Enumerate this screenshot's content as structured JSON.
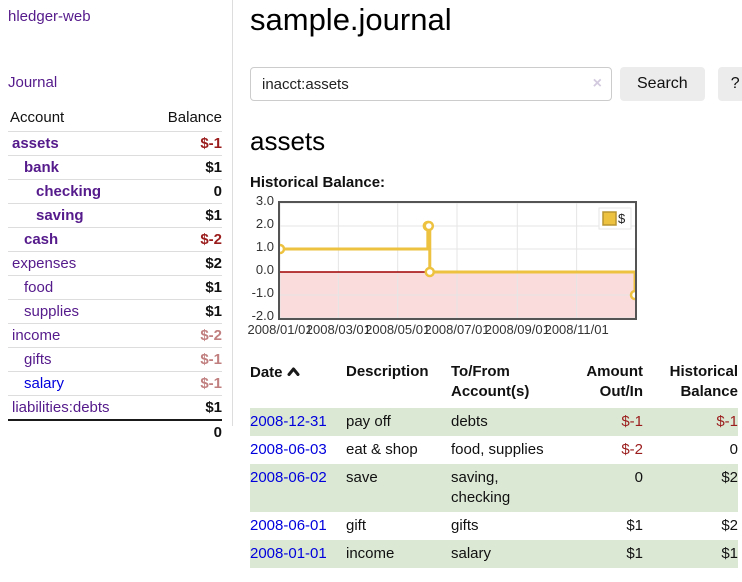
{
  "app": {
    "title": "hledger-web"
  },
  "sidebar": {
    "journal_link": "Journal",
    "table": {
      "account_header": "Account",
      "balance_header": "Balance",
      "accounts": [
        {
          "name": "assets",
          "balance": "$-1",
          "indent": 1,
          "bold": true,
          "balance_style": "neg-strong",
          "link": "visited"
        },
        {
          "name": "bank",
          "balance": "$1",
          "indent": 2,
          "bold": true,
          "balance_style": "pos",
          "link": "visited"
        },
        {
          "name": "checking",
          "balance": "0",
          "indent": 3,
          "bold": true,
          "balance_style": "pos",
          "link": "visited"
        },
        {
          "name": "saving",
          "balance": "$1",
          "indent": 3,
          "bold": true,
          "balance_style": "pos",
          "link": "visited"
        },
        {
          "name": "cash",
          "balance": "$-2",
          "indent": 2,
          "bold": true,
          "balance_style": "neg-strong",
          "link": "visited"
        },
        {
          "name": "expenses",
          "balance": "$2",
          "indent": 1,
          "bold": false,
          "balance_style": "pos",
          "link": "visited"
        },
        {
          "name": "food",
          "balance": "$1",
          "indent": 2,
          "bold": false,
          "balance_style": "pos",
          "link": "visited"
        },
        {
          "name": "supplies",
          "balance": "$1",
          "indent": 2,
          "bold": false,
          "balance_style": "pos",
          "link": "visited"
        },
        {
          "name": "income",
          "balance": "$-2",
          "indent": 1,
          "bold": false,
          "balance_style": "neg-soft",
          "link": "visited"
        },
        {
          "name": "gifts",
          "balance": "$-1",
          "indent": 2,
          "bold": false,
          "balance_style": "neg-soft",
          "link": "visited"
        },
        {
          "name": "salary",
          "balance": "$-1",
          "indent": 2,
          "bold": false,
          "balance_style": "neg-soft",
          "link": "unvisited"
        },
        {
          "name": "liabilities:debts",
          "balance": "$1",
          "indent": 1,
          "bold": false,
          "balance_style": "pos",
          "link": "visited"
        }
      ],
      "total": "0"
    }
  },
  "main": {
    "title": "sample.journal",
    "search": {
      "value": "inacct:assets",
      "clear_icon": "×",
      "button_label": "Search",
      "help_label": "?"
    },
    "account_heading": "assets",
    "chart_label": "Historical Balance:"
  },
  "chart_data": {
    "type": "line",
    "step": true,
    "title": "Historical Balance",
    "series": [
      {
        "name": "$",
        "color": "#EDC240",
        "points": [
          {
            "date": "2008-01-01",
            "value": 1
          },
          {
            "date": "2008-06-01",
            "value": 2
          },
          {
            "date": "2008-06-02",
            "value": 2
          },
          {
            "date": "2008-06-03",
            "value": 0
          },
          {
            "date": "2008-12-31",
            "value": -1
          }
        ]
      }
    ],
    "x_ticks": [
      "2008/01/01",
      "2008/03/01",
      "2008/05/01",
      "2008/07/01",
      "2008/09/01",
      "2008/11/01"
    ],
    "y_ticks": [
      3.0,
      2.0,
      1.0,
      0.0,
      -1.0,
      -2.0
    ],
    "ylim": [
      -2,
      3
    ],
    "x_range_days": 365,
    "legend": {
      "label": "$",
      "position": "top-right"
    },
    "grid": true,
    "colors": {
      "line": "#EDC240",
      "marker_fill": "#ffffff",
      "negative_region": "#fbdcdc",
      "zero_line": "#a00000",
      "border": "#545454",
      "gridline": "#e5e5e5",
      "legend_box_fill": "#EDC240",
      "legend_box_border": "#b89530"
    }
  },
  "register": {
    "headers": {
      "date": "Date",
      "description": "Description",
      "accounts": "To/From Account(s)",
      "amount": "Amount Out/In",
      "balance": "Historical Balance"
    },
    "sort": "ascending",
    "rows": [
      {
        "date": "2008-12-31",
        "description": "pay off",
        "accounts": "debts",
        "amount": "$-1",
        "amount_neg": true,
        "balance": "$-1",
        "balance_neg": true
      },
      {
        "date": "2008-06-03",
        "description": "eat & shop",
        "accounts": "food, supplies",
        "amount": "$-2",
        "amount_neg": true,
        "balance": "0",
        "balance_neg": false
      },
      {
        "date": "2008-06-02",
        "description": "save",
        "accounts": "saving,\nchecking",
        "amount": "0",
        "amount_neg": false,
        "balance": "$2",
        "balance_neg": false
      },
      {
        "date": "2008-06-01",
        "description": "gift",
        "accounts": "gifts",
        "amount": "$1",
        "amount_neg": false,
        "balance": "$2",
        "balance_neg": false
      },
      {
        "date": "2008-01-01",
        "description": "income",
        "accounts": "salary",
        "amount": "$1",
        "amount_neg": false,
        "balance": "$1",
        "balance_neg": false
      }
    ]
  }
}
